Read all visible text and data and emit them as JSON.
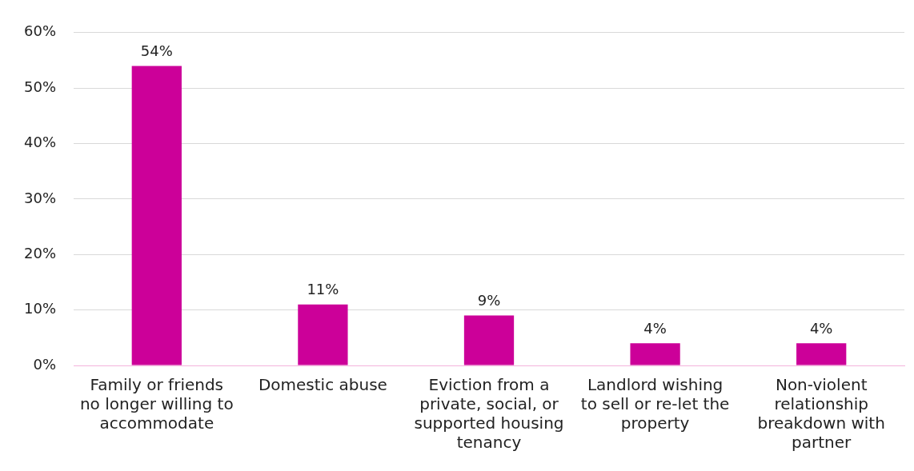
{
  "chart_data": {
    "type": "bar",
    "categories": [
      "Family or friends no longer willing to accommodate",
      "Domestic abuse",
      "Eviction from a private, social, or supported housing tenancy",
      "Landlord wishing to sell or re-let the property",
      "Non-violent relationship breakdown with partner"
    ],
    "values": [
      54,
      11,
      9,
      4,
      4
    ],
    "value_labels": [
      "54%",
      "11%",
      "9%",
      "4%",
      "4%"
    ],
    "color": "#cc0099",
    "ylim": [
      0,
      60
    ],
    "yticks": [
      {
        "value": 0,
        "label": "0%"
      },
      {
        "value": 10,
        "label": "10%"
      },
      {
        "value": 20,
        "label": "20%"
      },
      {
        "value": 30,
        "label": "30%"
      },
      {
        "value": 40,
        "label": "40%"
      },
      {
        "value": 50,
        "label": "50%"
      },
      {
        "value": 60,
        "label": "60%"
      }
    ],
    "grid": "y",
    "legend": false
  }
}
